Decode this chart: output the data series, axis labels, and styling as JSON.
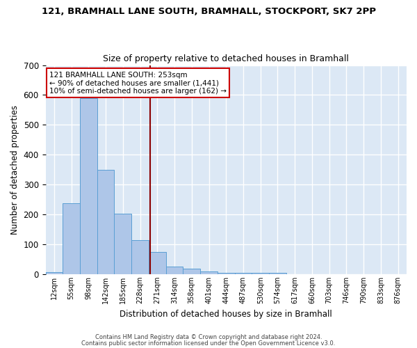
{
  "title_line1": "121, BRAMHALL LANE SOUTH, BRAMHALL, STOCKPORT, SK7 2PP",
  "title_line2": "Size of property relative to detached houses in Bramhall",
  "xlabel": "Distribution of detached houses by size in Bramhall",
  "ylabel": "Number of detached properties",
  "bin_labels": [
    "12sqm",
    "55sqm",
    "98sqm",
    "142sqm",
    "185sqm",
    "228sqm",
    "271sqm",
    "314sqm",
    "358sqm",
    "401sqm",
    "444sqm",
    "487sqm",
    "530sqm",
    "574sqm",
    "617sqm",
    "660sqm",
    "703sqm",
    "746sqm",
    "790sqm",
    "833sqm",
    "876sqm"
  ],
  "bar_heights": [
    7,
    237,
    590,
    350,
    203,
    115,
    75,
    25,
    18,
    10,
    5,
    4,
    4,
    5,
    0,
    0,
    0,
    0,
    0,
    0,
    0
  ],
  "bar_color": "#aec6e8",
  "bar_edge_color": "#5a9fd4",
  "background_color": "#dce8f5",
  "grid_color": "#ffffff",
  "ylim": [
    0,
    700
  ],
  "yticks": [
    0,
    100,
    200,
    300,
    400,
    500,
    600,
    700
  ],
  "annotation_text": "121 BRAMHALL LANE SOUTH: 253sqm\n← 90% of detached houses are smaller (1,441)\n10% of semi-detached houses are larger (162) →",
  "annotation_box_color": "#ffffff",
  "annotation_box_edge": "#cc0000",
  "red_line_color": "#8b0000",
  "footnote1": "Contains HM Land Registry data © Crown copyright and database right 2024.",
  "footnote2": "Contains public sector information licensed under the Open Government Licence v3.0."
}
